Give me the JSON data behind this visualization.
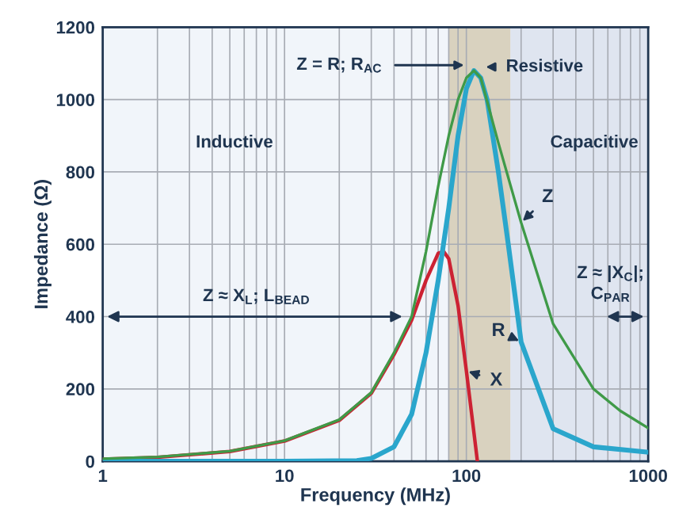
{
  "chart_data": {
    "type": "line",
    "xlabel": "Frequency (MHz)",
    "ylabel": "Impedance (Ω)",
    "log": "x",
    "xlim": [
      1,
      1000
    ],
    "xticks": [
      1,
      10,
      100,
      1000
    ],
    "ylim": [
      0,
      1200
    ],
    "yticks": [
      0,
      200,
      400,
      600,
      800,
      1000,
      1200
    ],
    "grid": true,
    "legend": false,
    "line_style": "solid",
    "marker": "none",
    "series": [
      {
        "name": "Z",
        "color": "#3f9a48",
        "x": [
          1,
          2,
          5,
          10,
          20,
          30,
          40,
          50,
          60,
          70,
          80,
          90,
          100,
          110,
          120,
          150,
          200,
          300,
          500,
          700,
          1000
        ],
        "values": [
          7,
          12,
          28,
          57,
          115,
          190,
          300,
          400,
          580,
          760,
          900,
          1000,
          1060,
          1080,
          1060,
          880,
          660,
          380,
          200,
          140,
          92
        ]
      },
      {
        "name": "R",
        "color": "#2aa6cc",
        "x": [
          1,
          10,
          25,
          30,
          40,
          50,
          60,
          70,
          80,
          90,
          100,
          110,
          120,
          130,
          150,
          170,
          200,
          300,
          500,
          1000
        ],
        "values": [
          0,
          0,
          2,
          8,
          40,
          130,
          300,
          500,
          700,
          900,
          1030,
          1080,
          1060,
          1000,
          800,
          600,
          330,
          90,
          40,
          25
        ]
      },
      {
        "name": "X",
        "color": "#cc2233",
        "x": [
          1,
          2,
          5,
          10,
          20,
          30,
          40,
          50,
          60,
          70,
          75,
          80,
          90,
          100,
          110,
          115
        ],
        "values": [
          6,
          11,
          27,
          56,
          113,
          188,
          295,
          390,
          500,
          575,
          580,
          560,
          430,
          250,
          80,
          0
        ]
      }
    ],
    "bands": [
      {
        "axis": "x",
        "from": 80,
        "to": 175,
        "color": "#d9d2bf"
      },
      {
        "axis": "x",
        "from": 175,
        "to": 1000,
        "color": "#dfe5f0"
      }
    ],
    "annotations": [
      "Z = R; R$_{AC}$",
      "Resistive",
      "Inductive",
      "Capacitive",
      "Z ≈ X$_{L}$; L$_{BEAD}$",
      "Z ≈ |X$_{C}$|;\nC$_{PAR}$"
    ]
  }
}
